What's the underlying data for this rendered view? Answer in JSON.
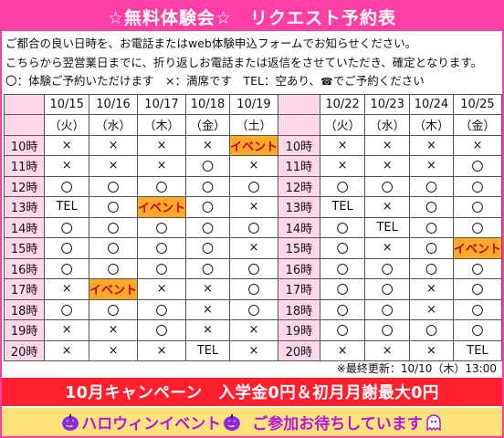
{
  "header": {
    "title": "☆無料体験会☆　リクエスト予約表"
  },
  "notes": {
    "line1": "ご都合の良い日時を、お電話またはweb体験申込フォームでお知らせください。",
    "line2": "こちらから翌営業日までに、折り返しお電話または返信をさせていただき、確定となります。",
    "legend": "〇：体験ご予約いただけます　×：満席です　TEL：空あり、",
    "legend_phone": "☎",
    "legend_tail": "でご予約ください"
  },
  "schedule": {
    "left": {
      "dates": [
        "10/15",
        "10/16",
        "10/17",
        "10/18",
        "10/19"
      ],
      "days": [
        "（火）",
        "（水）",
        "（木）",
        "（金）",
        "（土）"
      ],
      "rows": [
        {
          "time": "10時",
          "cells": [
            "×",
            "×",
            "×",
            "×",
            "イベント"
          ]
        },
        {
          "time": "11時",
          "cells": [
            "×",
            "×",
            "×",
            "〇",
            "×"
          ]
        },
        {
          "time": "12時",
          "cells": [
            "〇",
            "〇",
            "〇",
            "〇",
            "〇"
          ]
        },
        {
          "time": "13時",
          "cells": [
            "TEL",
            "〇",
            "イベント",
            "〇",
            "×"
          ]
        },
        {
          "time": "14時",
          "cells": [
            "〇",
            "〇",
            "〇",
            "〇",
            "〇"
          ]
        },
        {
          "time": "15時",
          "cells": [
            "〇",
            "〇",
            "〇",
            "〇",
            "×"
          ]
        },
        {
          "time": "16時",
          "cells": [
            "〇",
            "〇",
            "〇",
            "〇",
            "〇"
          ]
        },
        {
          "time": "17時",
          "cells": [
            "×",
            "イベント",
            "×",
            "×",
            "〇"
          ]
        },
        {
          "time": "18時",
          "cells": [
            "〇",
            "〇",
            "〇",
            "×",
            "〇"
          ]
        },
        {
          "time": "19時",
          "cells": [
            "×",
            "×",
            "〇",
            "×",
            "×"
          ]
        },
        {
          "time": "20時",
          "cells": [
            "×",
            "×",
            "×",
            "TEL",
            "×"
          ]
        }
      ]
    },
    "right": {
      "dates": [
        "10/22",
        "10/23",
        "10/24",
        "10/25"
      ],
      "days": [
        "（火）",
        "（水）",
        "（木）",
        "（金）"
      ],
      "rows": [
        {
          "time": "10時",
          "cells": [
            "×",
            "×",
            "×",
            "×"
          ]
        },
        {
          "time": "11時",
          "cells": [
            "×",
            "×",
            "×",
            "〇"
          ]
        },
        {
          "time": "12時",
          "cells": [
            "〇",
            "〇",
            "〇",
            "〇"
          ]
        },
        {
          "time": "13時",
          "cells": [
            "TEL",
            "×",
            "〇",
            "〇"
          ]
        },
        {
          "time": "14時",
          "cells": [
            "〇",
            "TEL",
            "〇",
            "〇"
          ]
        },
        {
          "time": "15時",
          "cells": [
            "〇",
            "×",
            "〇",
            "イベント"
          ]
        },
        {
          "time": "16時",
          "cells": [
            "〇",
            "〇",
            "〇",
            "〇"
          ]
        },
        {
          "time": "17時",
          "cells": [
            "〇",
            "〇",
            "×",
            "〇"
          ]
        },
        {
          "time": "18時",
          "cells": [
            "〇",
            "〇",
            "×",
            "〇"
          ]
        },
        {
          "time": "19時",
          "cells": [
            "〇",
            "〇",
            "〇",
            "〇"
          ]
        },
        {
          "time": "20時",
          "cells": [
            "×",
            "×",
            "×",
            "TEL"
          ]
        }
      ]
    }
  },
  "footer": {
    "last_updated": "※最終更新：10/10（木）13:00",
    "campaign": "10月キャンペーン　入学金0円＆初月月謝最大0円",
    "halloween_left": "ハロウィンイベント",
    "halloween_right": "ご参加お待ちしています"
  },
  "colors": {
    "accent": "#ff3fa6",
    "stub": "#ffd6ea",
    "event": "#ffa928",
    "campaign": "#ff1f2d",
    "halloween_bg": "#ffe37a",
    "halloween_text": "#b414e6"
  }
}
